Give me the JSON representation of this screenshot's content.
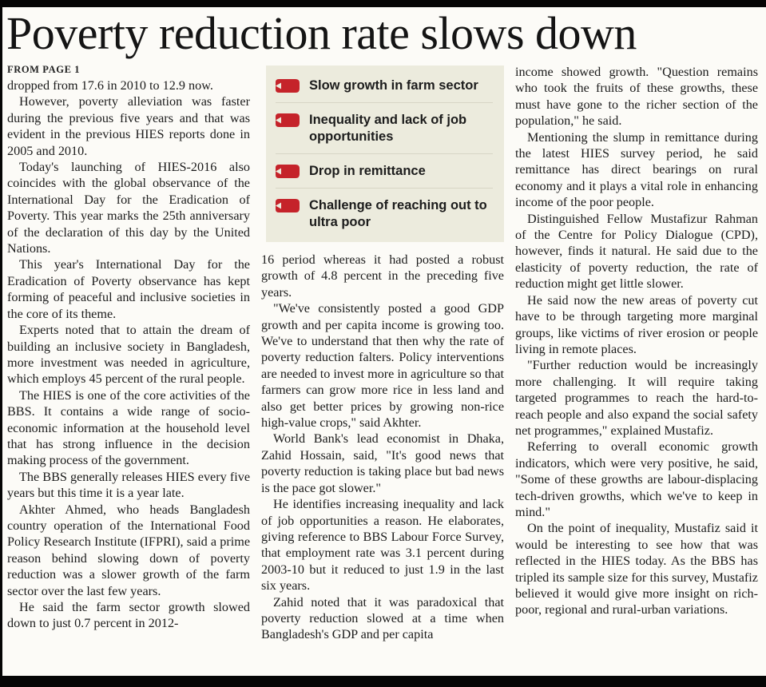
{
  "colors": {
    "accent_red": "#c5232a",
    "box_bg": "#ecebdd",
    "ink": "#1b1b1b",
    "rule_black": "#050505"
  },
  "masthead": {
    "headline": "Poverty reduction rate slows down"
  },
  "article": {
    "kicker": "FROM PAGE 1",
    "columns": {
      "col1": [
        "dropped from 17.6 in 2010 to 12.9 now.",
        "However, poverty alleviation was faster during the previous five years and that was evident in the previous HIES reports done in 2005 and 2010.",
        "Today's launching of HIES-2016 also coincides with the global observance of the International Day for the Eradication of Poverty. This year marks the 25th anniversary of the declaration of this day by the United Nations.",
        "This year's International Day for the Eradication of Poverty observance has kept forming of peaceful and inclusive societies in the core of its theme.",
        "Experts noted that to attain the dream of building an inclusive society in Bangladesh, more investment was needed in agriculture, which employs 45 percent of the rural people.",
        "The HIES is one of the core activities of the BBS. It contains a wide range of socio-economic information at the household level that has strong influence in the decision making process of the government.",
        "The BBS generally releases HIES every five years but this time it is a year late.",
        "Akhter Ahmed, who heads Bangladesh country operation of the International Food Policy Research Institute (IFPRI), said a prime reason behind slowing down of poverty reduction was a slower growth of the farm sector over the last few years.",
        "He said the farm sector growth slowed down to just 0.7 percent in 2012-"
      ],
      "col2": [
        "16 period whereas it had posted a robust growth of 4.8 percent in the preceding five years.",
        "\"We've consistently posted a good GDP growth and per capita income is growing too. We've to understand that then why the rate of poverty reduction falters. Policy interventions are needed to invest more in agriculture so that farmers can grow more rice in less land and also get better prices by growing non-rice high-value crops,\" said Akhter.",
        "World Bank's lead economist in Dhaka, Zahid Hossain, said, \"It's good news that poverty reduction is taking place but bad news is the pace got slower.\"",
        "He identifies increasing inequality and lack of job opportunities a reason. He elaborates, giving reference to BBS Labour Force Survey, that employment rate was 3.1 percent during 2003-10 but it reduced to just 1.9 in the last six years.",
        "Zahid noted that it was paradoxical that poverty reduction slowed at a time when Bangladesh's GDP and per capita"
      ],
      "col3": [
        "income showed growth. \"Question remains who took the fruits of these growths, these must have gone to the richer section of the population,\" he said.",
        "Mentioning the slump in remittance during the latest HIES survey period, he said remittance has direct bearings on rural economy and it plays a vital role in enhancing income of the poor people.",
        "Distinguished Fellow Mustafizur Rahman of the Centre for Policy Dialogue (CPD), however, finds it natural. He said due to the elasticity of poverty reduction, the rate of reduction might get little slower.",
        "He said now the new areas of poverty cut have to be through targeting more marginal groups, like victims of river erosion or people living in remote places.",
        "\"Further reduction would be increasingly more challenging. It will require taking targeted programmes to reach the hard-to-reach people and also expand the social safety net programmes,\" explained Mustafiz.",
        "Referring to overall economic growth indicators, which were very positive, he said, \"Some of these growths are labour-displacing tech-driven growths, which we've to keep in mind.\"",
        "On the point of inequality, Mustafiz said it would be interesting to see how that was reflected in the HIES today. As the BBS has tripled its sample size for this survey, Mustafiz believed it would give more insight on rich-poor, regional and rural-urban variations."
      ]
    }
  },
  "highlight_box": {
    "icon": "ribbon-icon",
    "items": [
      "Slow growth in farm sector",
      "Inequality and lack of job opportunities",
      "Drop in remittance",
      "Challenge of reaching out to ultra poor"
    ]
  }
}
